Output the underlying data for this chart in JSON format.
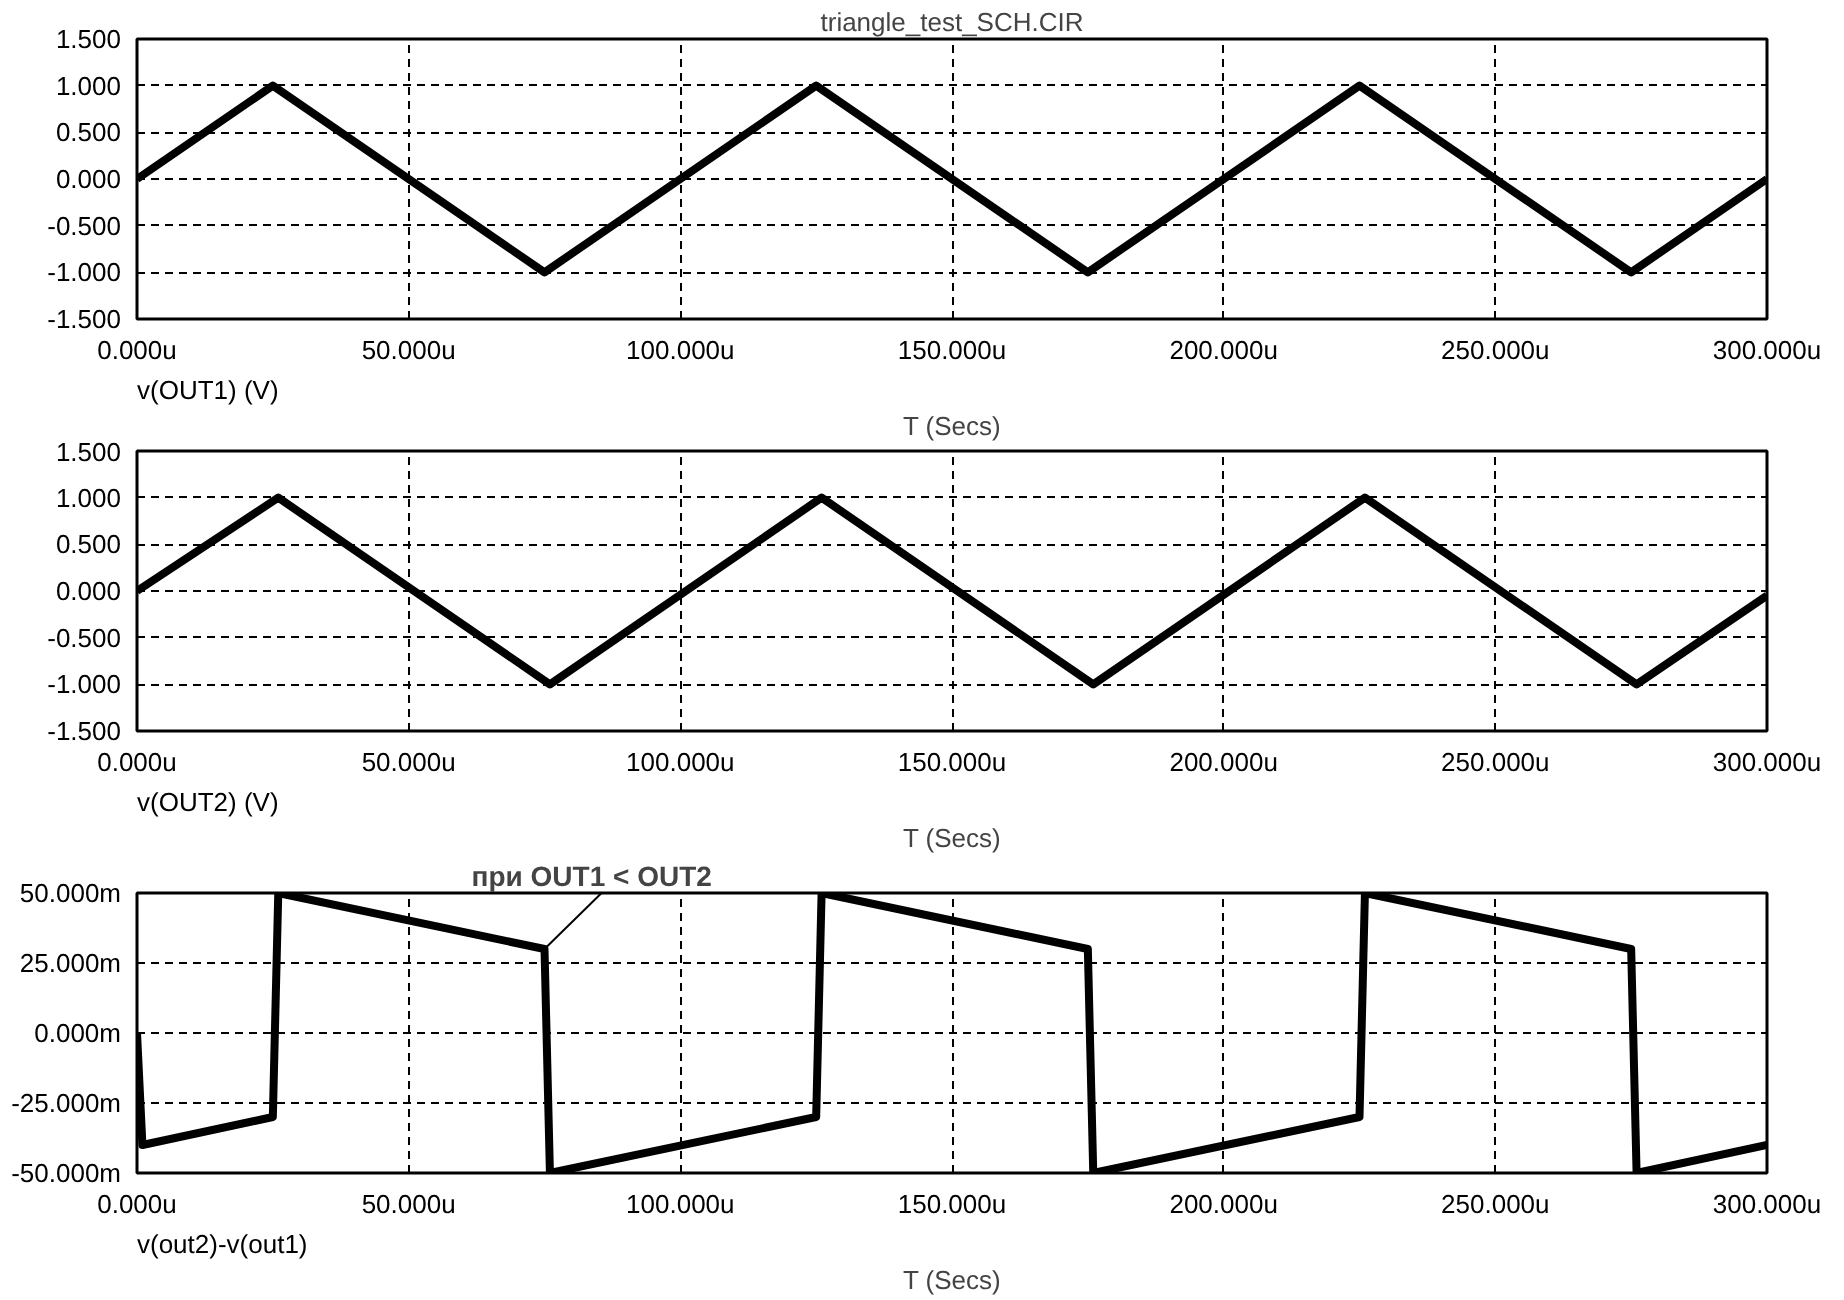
{
  "chart_data": [
    {
      "type": "line",
      "title": "triangle_test_SCH.CIR",
      "xlabel": "T (Secs)",
      "grid": true,
      "marker": "none",
      "line_style": "solid",
      "xlim": [
        0,
        300
      ],
      "ylim": [
        -1.5,
        1.5
      ],
      "xticks": [
        {
          "value": 0,
          "label": "0.000u"
        },
        {
          "value": 50,
          "label": "50.000u"
        },
        {
          "value": 100,
          "label": "100.000u"
        },
        {
          "value": 150,
          "label": "150.000u"
        },
        {
          "value": 200,
          "label": "200.000u"
        },
        {
          "value": 250,
          "label": "250.000u"
        },
        {
          "value": 300,
          "label": "300.000u"
        }
      ],
      "yticks": [
        {
          "value": -1.5,
          "label": "-1.500"
        },
        {
          "value": -1,
          "label": "-1.000"
        },
        {
          "value": -0.5,
          "label": "-0.500"
        },
        {
          "value": 0,
          "label": "0.000"
        },
        {
          "value": 0.5,
          "label": "0.500"
        },
        {
          "value": 1,
          "label": "1.000"
        },
        {
          "value": 1.5,
          "label": "1.500"
        }
      ],
      "x": [
        0,
        25,
        75,
        125,
        175,
        225,
        275,
        300
      ],
      "series": [
        {
          "name": "v(OUT1) (V)",
          "color": "#000000",
          "values": [
            0,
            1,
            -1,
            1,
            -1,
            1,
            -1,
            0
          ]
        }
      ]
    },
    {
      "type": "line",
      "xlabel": "T (Secs)",
      "grid": true,
      "marker": "none",
      "line_style": "solid",
      "xlim": [
        0,
        300
      ],
      "ylim": [
        -1.5,
        1.5
      ],
      "xticks": [
        {
          "value": 0,
          "label": "0.000u"
        },
        {
          "value": 50,
          "label": "50.000u"
        },
        {
          "value": 100,
          "label": "100.000u"
        },
        {
          "value": 150,
          "label": "150.000u"
        },
        {
          "value": 200,
          "label": "200.000u"
        },
        {
          "value": 250,
          "label": "250.000u"
        },
        {
          "value": 300,
          "label": "300.000u"
        }
      ],
      "yticks": [
        {
          "value": -1.5,
          "label": "-1.500"
        },
        {
          "value": -1,
          "label": "-1.000"
        },
        {
          "value": -0.5,
          "label": "-0.500"
        },
        {
          "value": 0,
          "label": "0.000"
        },
        {
          "value": 0.5,
          "label": "0.500"
        },
        {
          "value": 1,
          "label": "1.000"
        },
        {
          "value": 1.5,
          "label": "1.500"
        }
      ],
      "x": [
        0,
        26,
        76,
        126,
        176,
        226,
        276,
        300
      ],
      "series": [
        {
          "name": "v(OUT2) (V)",
          "color": "#000000",
          "values": [
            0,
            1,
            -1,
            1,
            -1,
            1,
            -1,
            -0.05
          ]
        }
      ]
    },
    {
      "type": "line",
      "xlabel": "T (Secs)",
      "grid": true,
      "marker": "none",
      "line_style": "solid",
      "xlim": [
        0,
        300
      ],
      "ylim": [
        -50,
        50
      ],
      "xticks": [
        {
          "value": 0,
          "label": "0.000u"
        },
        {
          "value": 50,
          "label": "50.000u"
        },
        {
          "value": 100,
          "label": "100.000u"
        },
        {
          "value": 150,
          "label": "150.000u"
        },
        {
          "value": 200,
          "label": "200.000u"
        },
        {
          "value": 250,
          "label": "250.000u"
        },
        {
          "value": 300,
          "label": "300.000u"
        }
      ],
      "yticks": [
        {
          "value": -50,
          "label": "-50.000m"
        },
        {
          "value": -25,
          "label": "-25.000m"
        },
        {
          "value": 0,
          "label": "0.000m"
        },
        {
          "value": 25,
          "label": "25.000m"
        },
        {
          "value": 50,
          "label": "50.000m"
        }
      ],
      "x": [
        0,
        1,
        25,
        26,
        75,
        76,
        125,
        126,
        175,
        176,
        225,
        226,
        275,
        276,
        300
      ],
      "series": [
        {
          "name": "v(out2)-v(out1)",
          "color": "#000000",
          "values": [
            0,
            -40,
            -30,
            50,
            30,
            -50,
            -30,
            50,
            30,
            -50,
            -30,
            50,
            30,
            -50,
            -40
          ]
        }
      ],
      "annotations": [
        {
          "text": "при OUT1 < OUT2",
          "x": 75,
          "y": 30
        }
      ]
    }
  ]
}
